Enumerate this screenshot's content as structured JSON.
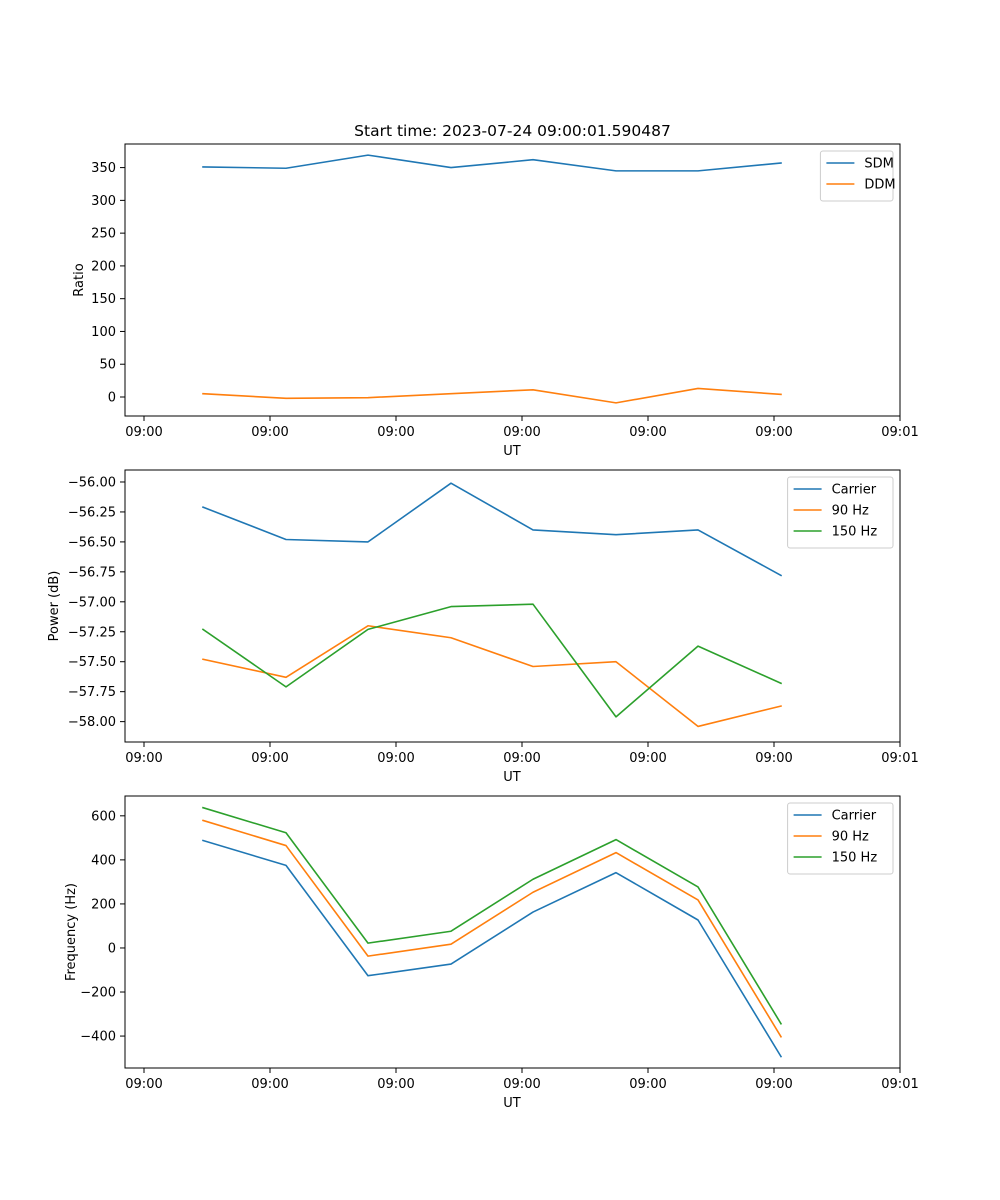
{
  "figure": {
    "title": "Start time: 2023-07-24 09:00:01.590487"
  },
  "chart_data": [
    {
      "type": "line",
      "xlabel": "UT",
      "ylabel": "Ratio",
      "x_tick_labels": [
        "09:00",
        "09:00",
        "09:00",
        "09:00",
        "09:00",
        "09:00",
        "09:01"
      ],
      "y_ticks": [
        0,
        50,
        100,
        150,
        200,
        250,
        300,
        350
      ],
      "ylim": [
        -29,
        386
      ],
      "legend_position": "top-right",
      "series": [
        {
          "name": "SDM",
          "color": "#1f77b4",
          "values": [
            351,
            349,
            369,
            350,
            362,
            345,
            345,
            357
          ]
        },
        {
          "name": "DDM",
          "color": "#ff7f0e",
          "values": [
            5,
            -2,
            -1,
            5,
            11,
            -9,
            13,
            4
          ]
        }
      ]
    },
    {
      "type": "line",
      "xlabel": "UT",
      "ylabel": "Power (dB)",
      "x_tick_labels": [
        "09:00",
        "09:00",
        "09:00",
        "09:00",
        "09:00",
        "09:00",
        "09:01"
      ],
      "y_ticks": [
        -58.0,
        -57.75,
        -57.5,
        -57.25,
        -57.0,
        -56.75,
        -56.5,
        -56.25,
        -56.0
      ],
      "y_tick_labels": [
        "−58.00",
        "−57.75",
        "−57.50",
        "−57.25",
        "−57.00",
        "−56.75",
        "−56.50",
        "−56.25",
        "−56.00"
      ],
      "ylim": [
        -58.17,
        -55.9
      ],
      "legend_position": "top-right",
      "series": [
        {
          "name": "Carrier",
          "color": "#1f77b4",
          "values": [
            -56.21,
            -56.48,
            -56.5,
            -56.01,
            -56.4,
            -56.44,
            -56.4,
            -56.78
          ]
        },
        {
          "name": "90 Hz",
          "color": "#ff7f0e",
          "values": [
            -57.48,
            -57.63,
            -57.2,
            -57.3,
            -57.54,
            -57.5,
            -58.04,
            -57.87
          ]
        },
        {
          "name": "150 Hz",
          "color": "#2ca02c",
          "values": [
            -57.23,
            -57.71,
            -57.23,
            -57.04,
            -57.02,
            -57.96,
            -57.37,
            -57.68
          ]
        }
      ]
    },
    {
      "type": "line",
      "xlabel": "UT",
      "ylabel": "Frequency (Hz)",
      "x_tick_labels": [
        "09:00",
        "09:00",
        "09:00",
        "09:00",
        "09:00",
        "09:00",
        "09:01"
      ],
      "y_ticks": [
        -400,
        -200,
        0,
        200,
        400,
        600
      ],
      "y_tick_labels": [
        "−400",
        "−200",
        "0",
        "200",
        "400",
        "600"
      ],
      "ylim": [
        -545,
        690
      ],
      "legend_position": "top-right",
      "series": [
        {
          "name": "Carrier",
          "color": "#1f77b4",
          "values": [
            488,
            375,
            -126,
            -73,
            163,
            342,
            127,
            -493
          ]
        },
        {
          "name": "90 Hz",
          "color": "#ff7f0e",
          "values": [
            579,
            465,
            -37,
            17,
            253,
            433,
            218,
            -403
          ]
        },
        {
          "name": "150 Hz",
          "color": "#2ca02c",
          "values": [
            637,
            523,
            22,
            76,
            312,
            492,
            277,
            -344
          ]
        }
      ]
    }
  ]
}
